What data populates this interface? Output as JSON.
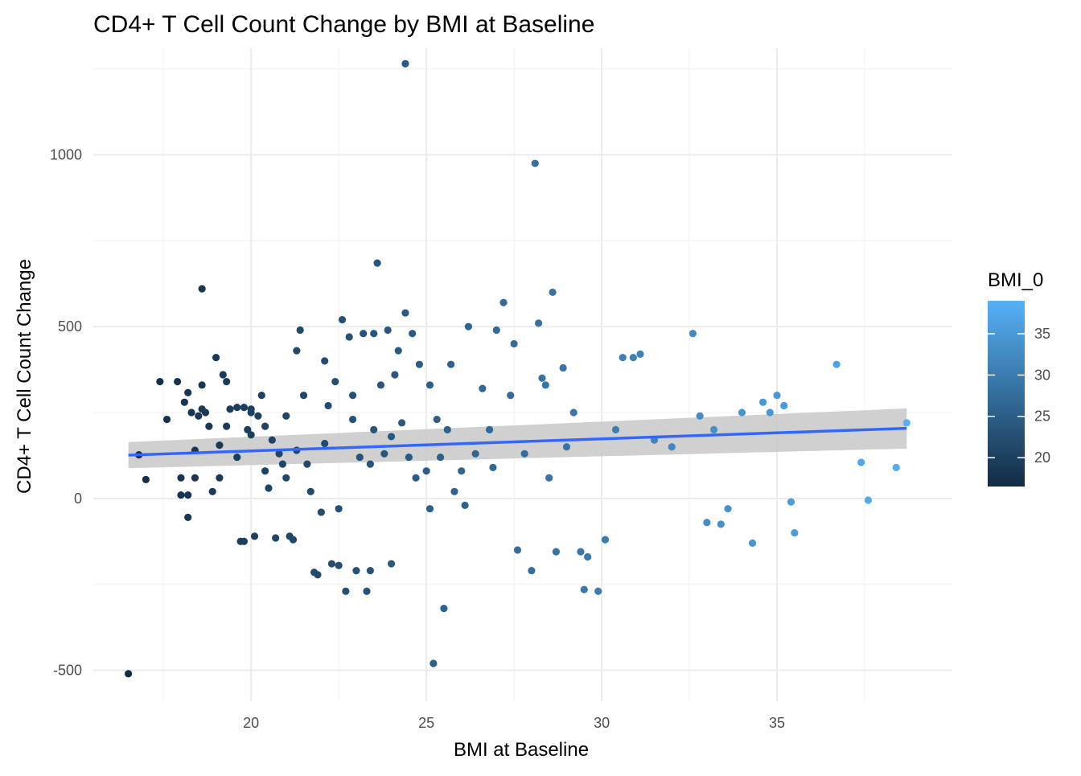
{
  "chart_data": {
    "type": "scatter",
    "title": "CD4+ T Cell Count Change by BMI at Baseline",
    "xlabel": "BMI at Baseline",
    "ylabel": "CD4+ T Cell Count Change",
    "xlim": [
      15.5,
      40
    ],
    "ylim": [
      -590,
      1310
    ],
    "x_ticks": [
      20,
      25,
      30,
      35
    ],
    "x_tick_labels": [
      "20",
      "25",
      "30",
      "35"
    ],
    "y_ticks": [
      -500,
      0,
      500,
      1000
    ],
    "y_tick_labels": [
      "-500",
      "0",
      "500",
      "1000"
    ],
    "grid": true,
    "legend": {
      "title": "BMI_0",
      "placement": "right",
      "type": "colorbar",
      "range": [
        16.5,
        39
      ],
      "ticks": [
        20,
        25,
        30,
        35
      ],
      "tick_labels": [
        "20",
        "25",
        "30",
        "35"
      ],
      "color_low": "#132b43",
      "color_high": "#56b1f7"
    },
    "trend_line": {
      "method": "linear",
      "x": [
        16.5,
        38.7
      ],
      "y": [
        126,
        204
      ],
      "ci_lower": [
        88,
        145
      ],
      "ci_upper": [
        164,
        262
      ],
      "color": "#3366ff",
      "band_color": "#c8c8c8"
    },
    "points": [
      [
        16.5,
        -510
      ],
      [
        16.8,
        127
      ],
      [
        17.0,
        55
      ],
      [
        17.4,
        340
      ],
      [
        17.6,
        230
      ],
      [
        17.9,
        340
      ],
      [
        18.0,
        60
      ],
      [
        18.0,
        10
      ],
      [
        18.1,
        280
      ],
      [
        18.2,
        308
      ],
      [
        18.2,
        10
      ],
      [
        18.2,
        -55
      ],
      [
        18.3,
        250
      ],
      [
        18.4,
        60
      ],
      [
        18.4,
        140
      ],
      [
        18.5,
        240
      ],
      [
        18.6,
        610
      ],
      [
        18.6,
        330
      ],
      [
        18.6,
        260
      ],
      [
        18.7,
        250
      ],
      [
        18.8,
        210
      ],
      [
        18.9,
        20
      ],
      [
        19.0,
        410
      ],
      [
        19.1,
        60
      ],
      [
        19.1,
        155
      ],
      [
        19.2,
        360
      ],
      [
        19.3,
        340
      ],
      [
        19.3,
        210
      ],
      [
        19.4,
        260
      ],
      [
        19.6,
        265
      ],
      [
        19.6,
        120
      ],
      [
        19.7,
        -125
      ],
      [
        19.8,
        265
      ],
      [
        19.8,
        -125
      ],
      [
        19.9,
        200
      ],
      [
        20.0,
        250
      ],
      [
        20.0,
        260
      ],
      [
        20.0,
        185
      ],
      [
        20.1,
        -110
      ],
      [
        20.2,
        240
      ],
      [
        20.3,
        300
      ],
      [
        20.4,
        210
      ],
      [
        20.4,
        80
      ],
      [
        20.5,
        30
      ],
      [
        20.6,
        170
      ],
      [
        20.7,
        -115
      ],
      [
        20.8,
        130
      ],
      [
        20.9,
        100
      ],
      [
        21.0,
        240
      ],
      [
        21.0,
        60
      ],
      [
        21.1,
        -110
      ],
      [
        21.2,
        -120
      ],
      [
        21.3,
        140
      ],
      [
        21.3,
        430
      ],
      [
        21.4,
        490
      ],
      [
        21.5,
        300
      ],
      [
        21.6,
        100
      ],
      [
        21.7,
        20
      ],
      [
        21.8,
        -215
      ],
      [
        21.9,
        -222
      ],
      [
        22.0,
        -40
      ],
      [
        22.1,
        400
      ],
      [
        22.1,
        160
      ],
      [
        22.2,
        270
      ],
      [
        22.3,
        -190
      ],
      [
        22.4,
        340
      ],
      [
        22.5,
        -195
      ],
      [
        22.5,
        -30
      ],
      [
        22.6,
        520
      ],
      [
        22.7,
        -270
      ],
      [
        22.8,
        470
      ],
      [
        22.9,
        300
      ],
      [
        22.9,
        230
      ],
      [
        23.0,
        -210
      ],
      [
        23.1,
        120
      ],
      [
        23.2,
        480
      ],
      [
        23.3,
        -270
      ],
      [
        23.4,
        -210
      ],
      [
        23.5,
        200
      ],
      [
        23.5,
        480
      ],
      [
        23.6,
        685
      ],
      [
        23.7,
        330
      ],
      [
        23.8,
        130
      ],
      [
        23.9,
        490
      ],
      [
        24.0,
        -190
      ],
      [
        24.1,
        360
      ],
      [
        24.2,
        430
      ],
      [
        24.3,
        220
      ],
      [
        24.4,
        540
      ],
      [
        24.4,
        1265
      ],
      [
        24.5,
        120
      ],
      [
        24.6,
        480
      ],
      [
        24.7,
        60
      ],
      [
        24.8,
        390
      ],
      [
        25.0,
        80
      ],
      [
        25.1,
        330
      ],
      [
        25.1,
        -30
      ],
      [
        25.2,
        -480
      ],
      [
        25.3,
        230
      ],
      [
        25.4,
        120
      ],
      [
        25.5,
        -320
      ],
      [
        25.6,
        200
      ],
      [
        25.7,
        390
      ],
      [
        26.0,
        80
      ],
      [
        26.1,
        -20
      ],
      [
        26.2,
        500
      ],
      [
        26.4,
        130
      ],
      [
        26.6,
        320
      ],
      [
        26.9,
        90
      ],
      [
        27.0,
        490
      ],
      [
        27.2,
        570
      ],
      [
        27.4,
        300
      ],
      [
        27.6,
        -150
      ],
      [
        27.8,
        130
      ],
      [
        28.0,
        -210
      ],
      [
        28.1,
        975
      ],
      [
        28.2,
        510
      ],
      [
        28.3,
        350
      ],
      [
        28.5,
        60
      ],
      [
        28.6,
        600
      ],
      [
        28.7,
        -155
      ],
      [
        28.9,
        380
      ],
      [
        29.2,
        250
      ],
      [
        29.4,
        -155
      ],
      [
        29.5,
        -265
      ],
      [
        29.6,
        -170
      ],
      [
        29.9,
        -270
      ],
      [
        30.1,
        -120
      ],
      [
        30.4,
        200
      ],
      [
        30.6,
        410
      ],
      [
        30.9,
        410
      ],
      [
        31.1,
        420
      ],
      [
        31.5,
        170
      ],
      [
        32.0,
        150
      ],
      [
        32.6,
        480
      ],
      [
        32.8,
        240
      ],
      [
        33.0,
        -70
      ],
      [
        33.2,
        200
      ],
      [
        33.4,
        -75
      ],
      [
        33.6,
        -30
      ],
      [
        34.0,
        250
      ],
      [
        34.3,
        -130
      ],
      [
        34.6,
        280
      ],
      [
        34.8,
        250
      ],
      [
        35.0,
        300
      ],
      [
        35.2,
        270
      ],
      [
        35.4,
        -10
      ],
      [
        35.5,
        -100
      ],
      [
        36.7,
        390
      ],
      [
        37.4,
        105
      ],
      [
        37.6,
        -5
      ],
      [
        38.4,
        90
      ],
      [
        38.7,
        220
      ],
      [
        24.0,
        180
      ],
      [
        26.8,
        200
      ],
      [
        29.0,
        150
      ],
      [
        27.5,
        450
      ],
      [
        23.4,
        100
      ],
      [
        25.8,
        20
      ],
      [
        28.4,
        330
      ]
    ]
  }
}
